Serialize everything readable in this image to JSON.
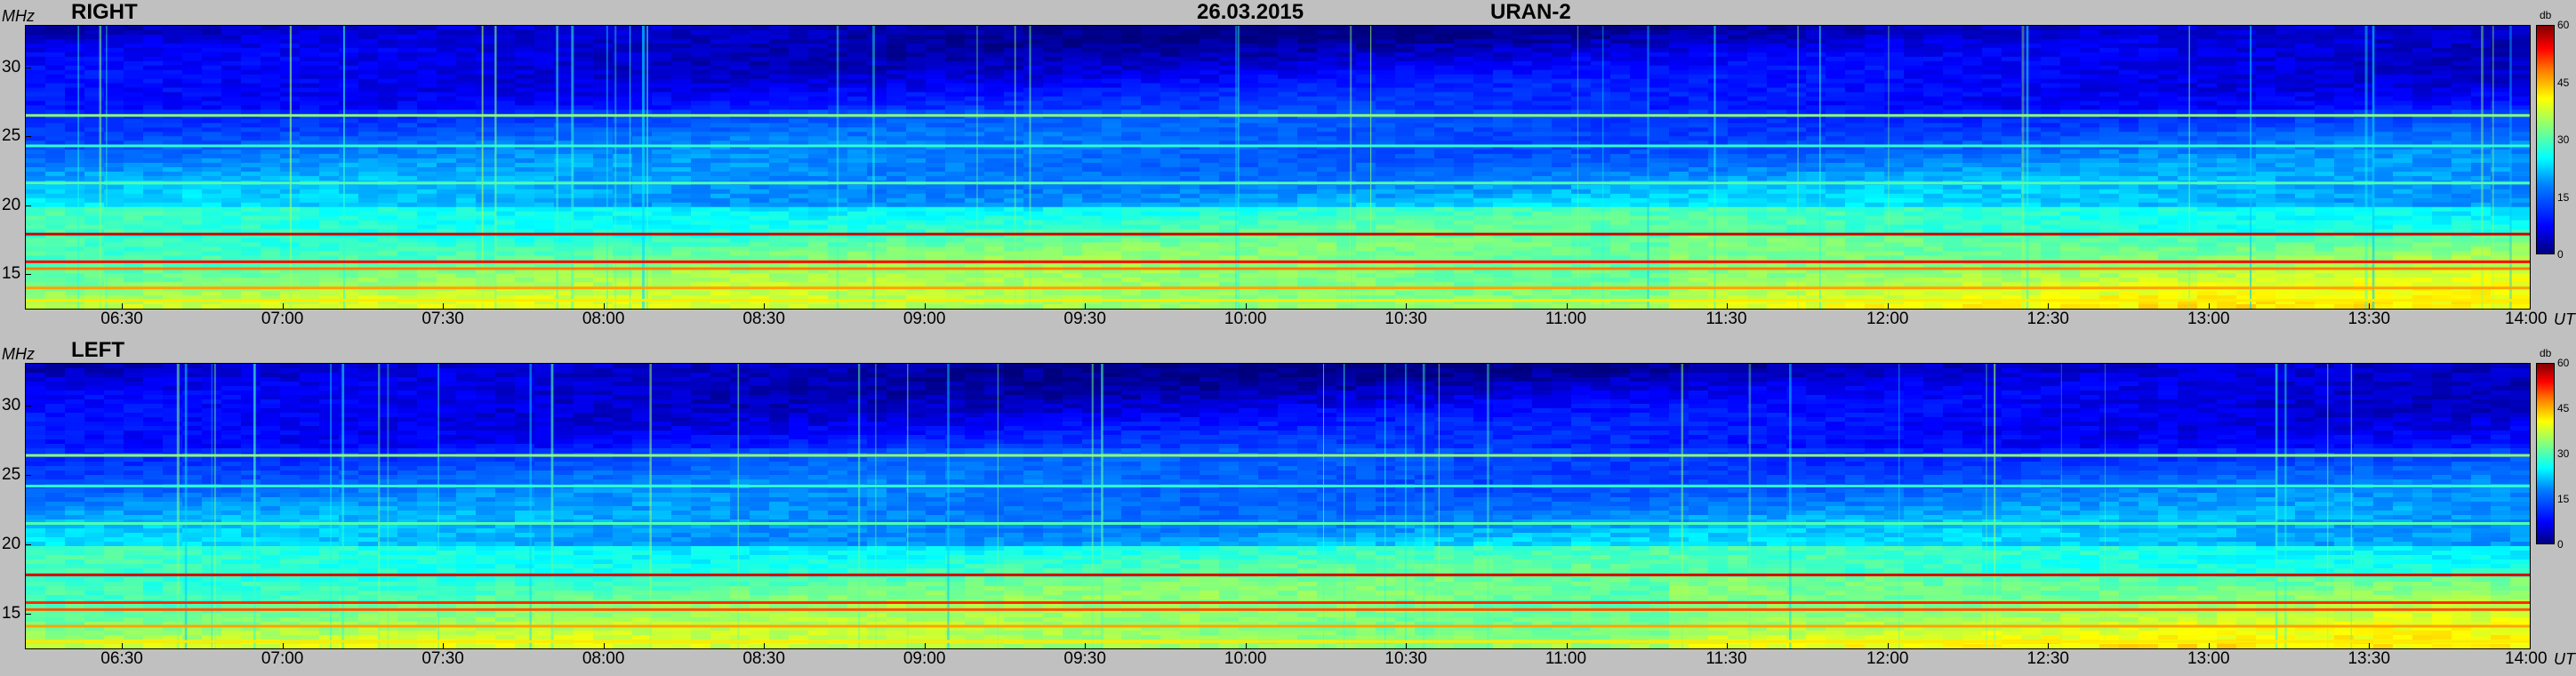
{
  "header": {
    "date": "26.03.2015",
    "instrument": "URAN-2"
  },
  "chart_data": {
    "type": "heatmap",
    "colorscale": [
      "#00007f",
      "#0000ff",
      "#0080ff",
      "#00ffff",
      "#80ff80",
      "#ffff00",
      "#ff8000",
      "#ff0000",
      "#7f0000"
    ],
    "x_unit": "UT",
    "x_range": [
      "06:12",
      "14:00"
    ],
    "x_ticks": [
      "06:30",
      "07:00",
      "07:30",
      "08:00",
      "08:30",
      "09:00",
      "09:30",
      "10:00",
      "10:30",
      "11:00",
      "11:30",
      "12:00",
      "12:30",
      "13:00",
      "13:30",
      "14:00"
    ],
    "y_unit": "MHz",
    "y_range": [
      12.5,
      33
    ],
    "y_ticks": [
      "15",
      "20",
      "25",
      "30"
    ],
    "colorbar": {
      "unit": "db",
      "range": [
        0,
        60
      ],
      "ticks": [
        "0",
        "15",
        "30",
        "45",
        "60"
      ]
    },
    "panels": [
      {
        "label": "RIGHT",
        "seed": 7,
        "bands": [
          {
            "f": 17.9,
            "db": 56
          },
          {
            "f": 15.9,
            "db": 54
          },
          {
            "f": 15.4,
            "db": 48
          },
          {
            "f": 14.0,
            "db": 46
          },
          {
            "f": 13.1,
            "db": 42
          },
          {
            "f": 26.5,
            "db": 34
          },
          {
            "f": 21.6,
            "db": 30
          },
          {
            "f": 24.3,
            "db": 28
          }
        ]
      },
      {
        "label": "LEFT",
        "seed": 11,
        "bands": [
          {
            "f": 17.8,
            "db": 56
          },
          {
            "f": 15.8,
            "db": 52
          },
          {
            "f": 15.3,
            "db": 50
          },
          {
            "f": 14.1,
            "db": 46
          },
          {
            "f": 13.0,
            "db": 42
          },
          {
            "f": 26.4,
            "db": 34
          },
          {
            "f": 21.5,
            "db": 30
          },
          {
            "f": 24.2,
            "db": 28
          }
        ]
      }
    ]
  }
}
